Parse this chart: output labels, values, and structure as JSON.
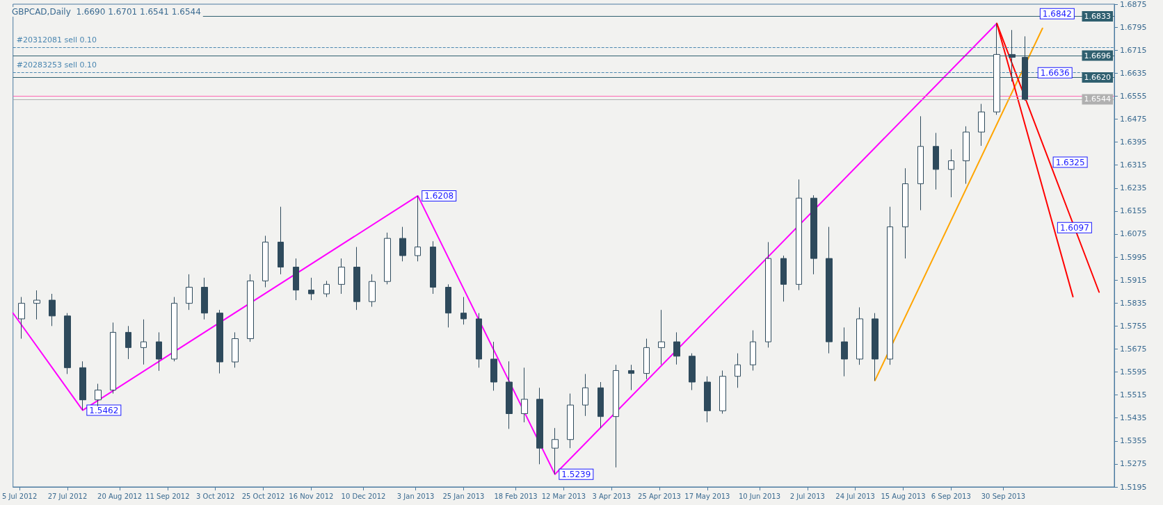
{
  "chart_data": {
    "type": "candlestick",
    "title": "GBPCAD,Daily  1.6690 1.6701 1.6541 1.6544",
    "color": "#2e4a5c",
    "x": [
      "2012-07-06",
      "2012-07-13",
      "2012-07-20",
      "2012-07-27",
      "2012-08-03",
      "2012-08-10",
      "2012-08-17",
      "2012-08-24",
      "2012-08-31",
      "2012-09-07",
      "2012-09-14",
      "2012-09-21",
      "2012-09-28",
      "2012-10-05",
      "2012-10-12",
      "2012-10-19",
      "2012-10-26",
      "2012-11-02",
      "2012-11-09",
      "2012-11-16",
      "2012-11-23",
      "2012-11-30",
      "2012-12-07",
      "2012-12-14",
      "2012-12-21",
      "2012-12-28",
      "2013-01-04",
      "2013-01-11",
      "2013-01-18",
      "2013-01-25",
      "2013-02-01",
      "2013-02-08",
      "2013-02-15",
      "2013-02-22",
      "2013-03-01",
      "2013-03-08",
      "2013-03-15",
      "2013-03-22",
      "2013-03-29",
      "2013-04-05",
      "2013-04-12",
      "2013-04-19",
      "2013-04-26",
      "2013-05-03",
      "2013-05-10",
      "2013-05-17",
      "2013-05-24",
      "2013-05-31",
      "2013-06-07",
      "2013-06-14",
      "2013-06-21",
      "2013-06-28",
      "2013-07-05",
      "2013-07-12",
      "2013-07-19",
      "2013-07-26",
      "2013-08-02",
      "2013-08-09",
      "2013-08-16",
      "2013-08-23",
      "2013-08-30",
      "2013-09-06",
      "2013-09-13",
      "2013-09-20",
      "2013-09-27",
      "2013-10-04",
      "2013-10-10"
    ],
    "ohlc": [
      [
        1.578,
        1.5856,
        1.5711,
        1.5834
      ],
      [
        1.5834,
        1.5879,
        1.5778,
        1.5845
      ],
      [
        1.5845,
        1.5867,
        1.5755,
        1.579
      ],
      [
        1.579,
        1.58,
        1.5588,
        1.561
      ],
      [
        1.561,
        1.5632,
        1.5462,
        1.5498
      ],
      [
        1.5498,
        1.5554,
        1.5476,
        1.5532
      ],
      [
        1.5532,
        1.5767,
        1.552,
        1.5733
      ],
      [
        1.5733,
        1.5755,
        1.564,
        1.568
      ],
      [
        1.568,
        1.5778,
        1.5621,
        1.57
      ],
      [
        1.57,
        1.5733,
        1.5599,
        1.564
      ],
      [
        1.564,
        1.5856,
        1.5632,
        1.5834
      ],
      [
        1.5834,
        1.5935,
        1.5811,
        1.589
      ],
      [
        1.589,
        1.5923,
        1.5778,
        1.58
      ],
      [
        1.58,
        1.5811,
        1.559,
        1.563
      ],
      [
        1.563,
        1.5733,
        1.561,
        1.5711
      ],
      [
        1.5711,
        1.5935,
        1.57,
        1.5912
      ],
      [
        1.5912,
        1.6069,
        1.589,
        1.6047
      ],
      [
        1.6047,
        1.617,
        1.5935,
        1.596
      ],
      [
        1.596,
        1.599,
        1.5845,
        1.588
      ],
      [
        1.588,
        1.5923,
        1.5845,
        1.5867
      ],
      [
        1.5867,
        1.5912,
        1.5856,
        1.59
      ],
      [
        1.59,
        1.599,
        1.5867,
        1.596
      ],
      [
        1.596,
        1.603,
        1.5811,
        1.584
      ],
      [
        1.584,
        1.5935,
        1.5822,
        1.591
      ],
      [
        1.591,
        1.608,
        1.59,
        1.606
      ],
      [
        1.606,
        1.61,
        1.598,
        1.6
      ],
      [
        1.6,
        1.6208,
        1.598,
        1.603
      ],
      [
        1.603,
        1.605,
        1.5867,
        1.589
      ],
      [
        1.589,
        1.59,
        1.575,
        1.58
      ],
      [
        1.58,
        1.5856,
        1.576,
        1.578
      ],
      [
        1.578,
        1.58,
        1.561,
        1.564
      ],
      [
        1.564,
        1.57,
        1.553,
        1.556
      ],
      [
        1.556,
        1.5632,
        1.5397,
        1.545
      ],
      [
        1.545,
        1.561,
        1.542,
        1.55
      ],
      [
        1.55,
        1.554,
        1.5274,
        1.533
      ],
      [
        1.533,
        1.54,
        1.5239,
        1.536
      ],
      [
        1.536,
        1.552,
        1.533,
        1.548
      ],
      [
        1.548,
        1.5588,
        1.5442,
        1.554
      ],
      [
        1.554,
        1.556,
        1.54,
        1.544
      ],
      [
        1.544,
        1.562,
        1.5263,
        1.56
      ],
      [
        1.56,
        1.562,
        1.5532,
        1.559
      ],
      [
        1.559,
        1.5711,
        1.557,
        1.568
      ],
      [
        1.568,
        1.5811,
        1.5621,
        1.57
      ],
      [
        1.57,
        1.5733,
        1.5621,
        1.565
      ],
      [
        1.565,
        1.566,
        1.5532,
        1.556
      ],
      [
        1.556,
        1.558,
        1.542,
        1.546
      ],
      [
        1.546,
        1.56,
        1.545,
        1.558
      ],
      [
        1.558,
        1.566,
        1.554,
        1.562
      ],
      [
        1.562,
        1.574,
        1.56,
        1.57
      ],
      [
        1.57,
        1.6047,
        1.568,
        1.599
      ],
      [
        1.599,
        1.6,
        1.584,
        1.59
      ],
      [
        1.59,
        1.6265,
        1.588,
        1.62
      ],
      [
        1.62,
        1.621,
        1.5935,
        1.599
      ],
      [
        1.599,
        1.61,
        1.566,
        1.57
      ],
      [
        1.57,
        1.575,
        1.558,
        1.564
      ],
      [
        1.564,
        1.582,
        1.562,
        1.578
      ],
      [
        1.578,
        1.58,
        1.5565,
        1.564
      ],
      [
        1.564,
        1.617,
        1.562,
        1.61
      ],
      [
        1.61,
        1.6304,
        1.599,
        1.625
      ],
      [
        1.625,
        1.6485,
        1.6158,
        1.638
      ],
      [
        1.638,
        1.6427,
        1.623,
        1.63
      ],
      [
        1.63,
        1.637,
        1.6203,
        1.633
      ],
      [
        1.633,
        1.645,
        1.625,
        1.643
      ],
      [
        1.643,
        1.6528,
        1.6382,
        1.65
      ],
      [
        1.65,
        1.6808,
        1.649,
        1.67
      ],
      [
        1.67,
        1.6785,
        1.6606,
        1.669
      ],
      [
        1.669,
        1.6763,
        1.6539,
        1.6544
      ]
    ],
    "series": [
      {
        "type": "line",
        "color": "#ff00ff",
        "x": [
          "2012-07-02",
          "2012-08-03",
          "2013-01-04",
          "2013-03-08",
          "2013-09-27"
        ],
        "values": [
          1.58,
          1.5462,
          1.6208,
          1.5239,
          1.6808
        ]
      },
      {
        "type": "line",
        "color": "#ffa500",
        "x": [
          "2013-08-02",
          "2013-10-18"
        ],
        "values": [
          1.5565,
          1.6791
        ]
      },
      {
        "type": "line",
        "color": "#ff0000",
        "x": [
          "2013-09-27",
          "2013-11-01"
        ],
        "values": [
          1.6808,
          1.5857
        ]
      },
      {
        "type": "line",
        "color": "#ff0000",
        "x": [
          "2013-09-27",
          "2013-11-13"
        ],
        "values": [
          1.6808,
          1.5873
        ]
      }
    ],
    "marker": "none",
    "line_style": "solid",
    "xlim": [
      "2012-07-02",
      "2013-11-20"
    ],
    "xticks": [
      {
        "value": "2012-07-05",
        "label": "5 Jul 2012"
      },
      {
        "value": "2012-07-27",
        "label": "27 Jul 2012"
      },
      {
        "value": "2012-08-20",
        "label": "20 Aug 2012"
      },
      {
        "value": "2012-09-11",
        "label": "11 Sep 2012"
      },
      {
        "value": "2012-10-03",
        "label": "3 Oct 2012"
      },
      {
        "value": "2012-10-25",
        "label": "25 Oct 2012"
      },
      {
        "value": "2012-11-16",
        "label": "16 Nov 2012"
      },
      {
        "value": "2012-12-10",
        "label": "10 Dec 2012"
      },
      {
        "value": "2013-01-03",
        "label": "3 Jan 2013"
      },
      {
        "value": "2013-01-25",
        "label": "25 Jan 2013"
      },
      {
        "value": "2013-02-18",
        "label": "18 Feb 2013"
      },
      {
        "value": "2013-03-12",
        "label": "12 Mar 2013"
      },
      {
        "value": "2013-04-03",
        "label": "3 Apr 2013"
      },
      {
        "value": "2013-04-25",
        "label": "25 Apr 2013"
      },
      {
        "value": "2013-05-17",
        "label": "17 May 2013"
      },
      {
        "value": "2013-06-10",
        "label": "10 Jun 2013"
      },
      {
        "value": "2013-07-02",
        "label": "2 Jul 2013"
      },
      {
        "value": "2013-07-24",
        "label": "24 Jul 2013"
      },
      {
        "value": "2013-08-15",
        "label": "15 Aug 2013"
      },
      {
        "value": "2013-09-06",
        "label": "6 Sep 2013"
      },
      {
        "value": "2013-09-30",
        "label": "30 Sep 2013"
      }
    ],
    "ylim": [
      1.5195,
      1.6875
    ],
    "yticks": [
      1.5195,
      1.5275,
      1.5355,
      1.5435,
      1.5515,
      1.5595,
      1.5675,
      1.5755,
      1.5835,
      1.5915,
      1.5995,
      1.6075,
      1.6155,
      1.6235,
      1.6315,
      1.6395,
      1.6475,
      1.6555,
      1.6635,
      1.6715,
      1.6795,
      1.6875
    ],
    "ref_lines": [
      {
        "axis": "y",
        "value": 1.6833,
        "label": "1.6833",
        "color": "#2f5f6f",
        "line_style": "solid"
      },
      {
        "axis": "y",
        "value": 1.6696,
        "label": "1.6696",
        "color": "#2f5f6f",
        "line_style": "solid"
      },
      {
        "axis": "y",
        "value": 1.662,
        "label": "1.6620",
        "color": "#2f5f6f",
        "line_style": "solid"
      },
      {
        "axis": "y",
        "value": 1.6544,
        "label": "1.6544",
        "color": "#b0b0b0",
        "line_style": "solid"
      },
      {
        "axis": "y",
        "value": 1.6556,
        "color": "#ff69b4",
        "line_style": "solid"
      },
      {
        "axis": "y",
        "value": 1.6724,
        "label": "#20312081 sell 0.10",
        "color": "#4a86b0",
        "line_style": "dashed"
      },
      {
        "axis": "y",
        "value": 1.6638,
        "label": "#20283253 sell 0.10",
        "color": "#4a86b0",
        "line_style": "dashed"
      }
    ],
    "annotations": [
      {
        "text": "1.6842",
        "x": "2013-10-15",
        "y": 1.6842
      },
      {
        "text": "1.6636",
        "x": "2013-10-14",
        "y": 1.6636
      },
      {
        "text": "1.6325",
        "x": "2013-10-21",
        "y": 1.6325
      },
      {
        "text": "1.6097",
        "x": "2013-10-23",
        "y": 1.6097
      },
      {
        "text": "1.6208",
        "x": "2013-01-04",
        "y": 1.6208
      },
      {
        "text": "1.5462",
        "x": "2012-08-03",
        "y": 1.5462
      },
      {
        "text": "1.5239",
        "x": "2013-03-08",
        "y": 1.5239
      }
    ]
  }
}
